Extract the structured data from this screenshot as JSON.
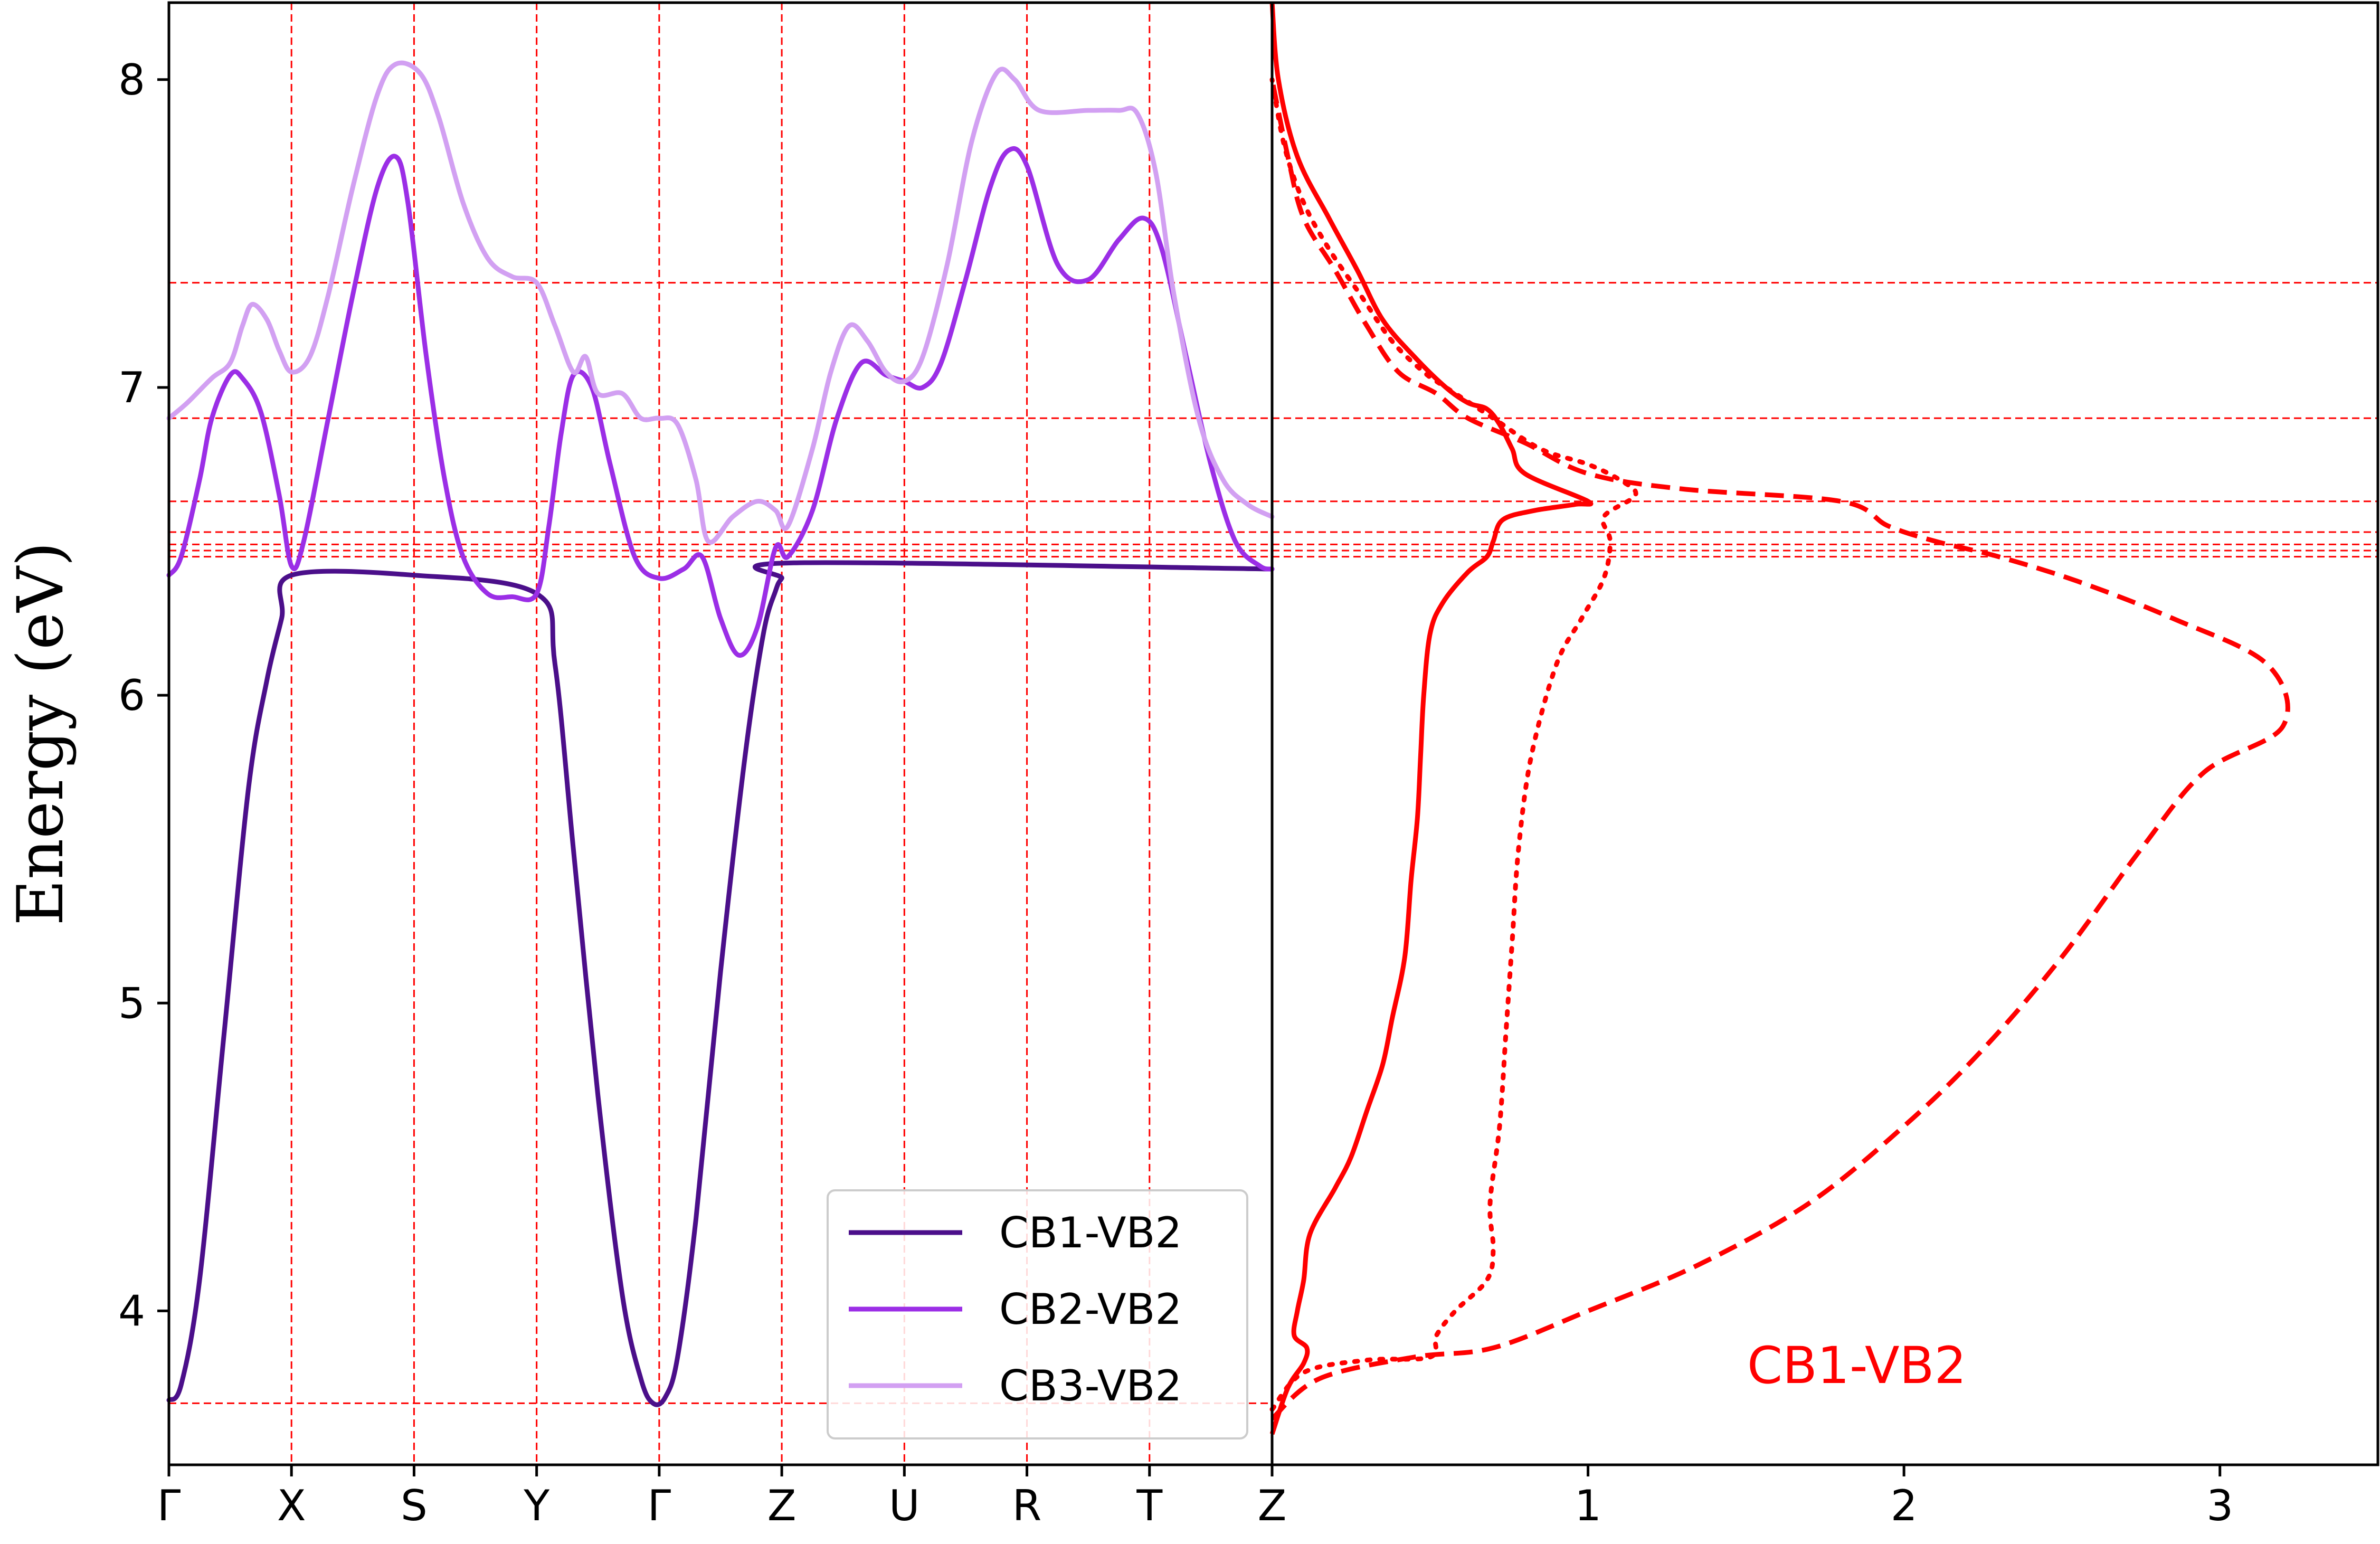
{
  "chart_data": [
    {
      "type": "line",
      "panel": "band-structure",
      "ylabel": "Energy (eV)",
      "ylim": [
        3.5,
        8.25
      ],
      "yticks": [
        4,
        5,
        6,
        7,
        8
      ],
      "kpath_labels": [
        "Γ",
        "X",
        "S",
        "Y",
        "Γ",
        "Z",
        "U",
        "R",
        "T",
        "Z"
      ],
      "kpath_positions": [
        0,
        1,
        2,
        3,
        4,
        5,
        6,
        7,
        8,
        9
      ],
      "grid": "red dashed at high-symmetry points and special energies",
      "special_energies": [
        3.7,
        6.45,
        6.47,
        6.49,
        6.53,
        6.63,
        6.9,
        7.34
      ],
      "legend": {
        "placement": "lower-right",
        "entries": [
          "CB1-VB2",
          "CB2-VB2",
          "CB3-VB2"
        ]
      },
      "series": [
        {
          "name": "CB1-VB2",
          "color": "#4b0f8a",
          "points": [
            [
              0,
              3.71
            ],
            [
              0.1,
              3.76
            ],
            [
              0.25,
              4.1
            ],
            [
              0.45,
              4.9
            ],
            [
              0.65,
              5.7
            ],
            [
              0.8,
              6.05
            ],
            [
              0.92,
              6.25
            ],
            [
              1.0,
              6.39
            ],
            [
              2.0,
              6.39
            ],
            [
              3.0,
              6.33
            ],
            [
              3.15,
              6.1
            ],
            [
              3.3,
              5.5
            ],
            [
              3.5,
              4.7
            ],
            [
              3.7,
              4.05
            ],
            [
              3.85,
              3.78
            ],
            [
              3.95,
              3.7
            ],
            [
              4.05,
              3.72
            ],
            [
              4.15,
              3.85
            ],
            [
              4.3,
              4.3
            ],
            [
              4.5,
              5.1
            ],
            [
              4.7,
              5.8
            ],
            [
              4.85,
              6.2
            ],
            [
              4.95,
              6.34
            ],
            [
              5.0,
              6.38
            ],
            [
              5.1,
              6.43
            ],
            [
              9.0,
              6.41
            ]
          ]
        },
        {
          "name": "CB2-VB2",
          "color": "#9b2ee6",
          "points": [
            [
              0,
              6.39
            ],
            [
              0.1,
              6.45
            ],
            [
              0.25,
              6.7
            ],
            [
              0.35,
              6.9
            ],
            [
              0.5,
              7.04
            ],
            [
              0.6,
              7.03
            ],
            [
              0.75,
              6.92
            ],
            [
              0.9,
              6.65
            ],
            [
              1.0,
              6.42
            ],
            [
              1.1,
              6.5
            ],
            [
              1.3,
              6.9
            ],
            [
              1.5,
              7.3
            ],
            [
              1.7,
              7.65
            ],
            [
              1.85,
              7.75
            ],
            [
              1.95,
              7.6
            ],
            [
              2.1,
              7.1
            ],
            [
              2.25,
              6.7
            ],
            [
              2.4,
              6.45
            ],
            [
              2.6,
              6.33
            ],
            [
              2.8,
              6.32
            ],
            [
              3.0,
              6.33
            ],
            [
              3.1,
              6.55
            ],
            [
              3.2,
              6.85
            ],
            [
              3.3,
              7.04
            ],
            [
              3.45,
              7.0
            ],
            [
              3.6,
              6.75
            ],
            [
              3.8,
              6.45
            ],
            [
              4.0,
              6.38
            ],
            [
              4.2,
              6.41
            ],
            [
              4.35,
              6.45
            ],
            [
              4.5,
              6.25
            ],
            [
              4.65,
              6.13
            ],
            [
              4.8,
              6.22
            ],
            [
              4.95,
              6.48
            ],
            [
              5.05,
              6.45
            ],
            [
              5.25,
              6.6
            ],
            [
              5.45,
              6.9
            ],
            [
              5.65,
              7.08
            ],
            [
              5.85,
              7.04
            ],
            [
              6.0,
              7.02
            ],
            [
              6.15,
              7.0
            ],
            [
              6.3,
              7.08
            ],
            [
              6.5,
              7.35
            ],
            [
              6.7,
              7.65
            ],
            [
              6.85,
              7.77
            ],
            [
              7.0,
              7.72
            ],
            [
              7.25,
              7.4
            ],
            [
              7.5,
              7.35
            ],
            [
              7.75,
              7.48
            ],
            [
              7.95,
              7.55
            ],
            [
              8.1,
              7.45
            ],
            [
              8.3,
              7.1
            ],
            [
              8.5,
              6.75
            ],
            [
              8.7,
              6.5
            ],
            [
              8.9,
              6.42
            ],
            [
              9.0,
              6.41
            ]
          ]
        },
        {
          "name": "CB3-VB2",
          "color": "#d2a0f2",
          "points": [
            [
              0,
              6.9
            ],
            [
              0.15,
              6.95
            ],
            [
              0.35,
              7.03
            ],
            [
              0.5,
              7.08
            ],
            [
              0.6,
              7.2
            ],
            [
              0.68,
              7.27
            ],
            [
              0.8,
              7.22
            ],
            [
              0.9,
              7.12
            ],
            [
              1.0,
              7.05
            ],
            [
              1.15,
              7.1
            ],
            [
              1.3,
              7.3
            ],
            [
              1.5,
              7.65
            ],
            [
              1.7,
              7.95
            ],
            [
              1.85,
              8.05
            ],
            [
              2.05,
              8.02
            ],
            [
              2.2,
              7.88
            ],
            [
              2.4,
              7.6
            ],
            [
              2.6,
              7.42
            ],
            [
              2.8,
              7.36
            ],
            [
              3.0,
              7.34
            ],
            [
              3.15,
              7.2
            ],
            [
              3.3,
              7.05
            ],
            [
              3.4,
              7.1
            ],
            [
              3.5,
              6.98
            ],
            [
              3.7,
              6.98
            ],
            [
              3.85,
              6.9
            ],
            [
              4.0,
              6.9
            ],
            [
              4.15,
              6.88
            ],
            [
              4.3,
              6.7
            ],
            [
              4.4,
              6.5
            ],
            [
              4.6,
              6.58
            ],
            [
              4.8,
              6.63
            ],
            [
              4.95,
              6.6
            ],
            [
              5.05,
              6.55
            ],
            [
              5.25,
              6.8
            ],
            [
              5.4,
              7.05
            ],
            [
              5.55,
              7.2
            ],
            [
              5.7,
              7.15
            ],
            [
              5.85,
              7.05
            ],
            [
              6.0,
              7.02
            ],
            [
              6.15,
              7.1
            ],
            [
              6.35,
              7.4
            ],
            [
              6.55,
              7.8
            ],
            [
              6.75,
              8.02
            ],
            [
              6.9,
              8.0
            ],
            [
              7.1,
              7.9
            ],
            [
              7.5,
              7.9
            ],
            [
              7.75,
              7.9
            ],
            [
              7.9,
              7.89
            ],
            [
              8.05,
              7.7
            ],
            [
              8.2,
              7.3
            ],
            [
              8.4,
              6.9
            ],
            [
              8.6,
              6.7
            ],
            [
              8.8,
              6.62
            ],
            [
              9.0,
              6.58
            ]
          ]
        }
      ]
    },
    {
      "type": "line",
      "panel": "density",
      "ylim": [
        3.5,
        8.25
      ],
      "xlim": [
        0,
        3.5
      ],
      "xticks": [
        1,
        2,
        3
      ],
      "annotation": "CB1-VB2",
      "color": "#ff0000",
      "series": [
        {
          "style": "solid",
          "points": [
            [
              0,
              3.6
            ],
            [
              0.05,
              3.75
            ],
            [
              0.1,
              3.83
            ],
            [
              0.11,
              3.88
            ],
            [
              0.07,
              3.92
            ],
            [
              0.08,
              4.0
            ],
            [
              0.1,
              4.1
            ],
            [
              0.12,
              4.25
            ],
            [
              0.2,
              4.4
            ],
            [
              0.25,
              4.5
            ],
            [
              0.3,
              4.65
            ],
            [
              0.35,
              4.8
            ],
            [
              0.38,
              4.95
            ],
            [
              0.42,
              5.15
            ],
            [
              0.44,
              5.4
            ],
            [
              0.46,
              5.6
            ],
            [
              0.47,
              5.8
            ],
            [
              0.48,
              6.0
            ],
            [
              0.5,
              6.2
            ],
            [
              0.54,
              6.3
            ],
            [
              0.62,
              6.4
            ],
            [
              0.68,
              6.45
            ],
            [
              0.7,
              6.5
            ],
            [
              0.73,
              6.57
            ],
            [
              0.83,
              6.6
            ],
            [
              0.96,
              6.62
            ],
            [
              1.0,
              6.63
            ],
            [
              0.8,
              6.72
            ],
            [
              0.76,
              6.8
            ],
            [
              0.72,
              6.88
            ],
            [
              0.68,
              6.93
            ],
            [
              0.62,
              6.95
            ],
            [
              0.55,
              7.0
            ],
            [
              0.45,
              7.1
            ],
            [
              0.35,
              7.22
            ],
            [
              0.27,
              7.38
            ],
            [
              0.18,
              7.55
            ],
            [
              0.08,
              7.75
            ],
            [
              0.02,
              8.0
            ],
            [
              0,
              8.25
            ]
          ]
        },
        {
          "style": "dashed",
          "points": [
            [
              0,
              3.65
            ],
            [
              0.15,
              3.78
            ],
            [
              0.45,
              3.85
            ],
            [
              0.7,
              3.88
            ],
            [
              1.0,
              4.0
            ],
            [
              1.35,
              4.15
            ],
            [
              1.7,
              4.35
            ],
            [
              2.0,
              4.6
            ],
            [
              2.25,
              4.85
            ],
            [
              2.5,
              5.15
            ],
            [
              2.75,
              5.5
            ],
            [
              2.95,
              5.75
            ],
            [
              3.2,
              5.9
            ],
            [
              3.15,
              6.1
            ],
            [
              2.85,
              6.25
            ],
            [
              2.55,
              6.37
            ],
            [
              2.3,
              6.45
            ],
            [
              2.1,
              6.5
            ],
            [
              1.95,
              6.55
            ],
            [
              1.8,
              6.63
            ],
            [
              1.3,
              6.67
            ],
            [
              1.0,
              6.72
            ],
            [
              0.8,
              6.82
            ],
            [
              0.62,
              6.9
            ],
            [
              0.52,
              6.98
            ],
            [
              0.4,
              7.05
            ],
            [
              0.3,
              7.2
            ],
            [
              0.2,
              7.38
            ],
            [
              0.1,
              7.55
            ],
            [
              0.05,
              7.75
            ],
            [
              0,
              8.0
            ]
          ]
        },
        {
          "style": "dotted",
          "points": [
            [
              0,
              3.68
            ],
            [
              0.1,
              3.8
            ],
            [
              0.3,
              3.84
            ],
            [
              0.5,
              3.85
            ],
            [
              0.52,
              3.92
            ],
            [
              0.58,
              4.0
            ],
            [
              0.68,
              4.1
            ],
            [
              0.7,
              4.2
            ],
            [
              0.69,
              4.35
            ],
            [
              0.72,
              4.6
            ],
            [
              0.74,
              4.9
            ],
            [
              0.76,
              5.2
            ],
            [
              0.78,
              5.5
            ],
            [
              0.82,
              5.8
            ],
            [
              0.9,
              6.1
            ],
            [
              0.98,
              6.25
            ],
            [
              1.05,
              6.38
            ],
            [
              1.07,
              6.5
            ],
            [
              1.05,
              6.58
            ],
            [
              1.15,
              6.65
            ],
            [
              1.1,
              6.7
            ],
            [
              1.0,
              6.75
            ],
            [
              0.85,
              6.8
            ],
            [
              0.7,
              6.9
            ],
            [
              0.55,
              7.0
            ],
            [
              0.48,
              7.05
            ],
            [
              0.38,
              7.15
            ],
            [
              0.28,
              7.3
            ],
            [
              0.18,
              7.45
            ],
            [
              0.1,
              7.6
            ],
            [
              0.04,
              7.78
            ],
            [
              0,
              8.0
            ]
          ]
        }
      ]
    }
  ]
}
